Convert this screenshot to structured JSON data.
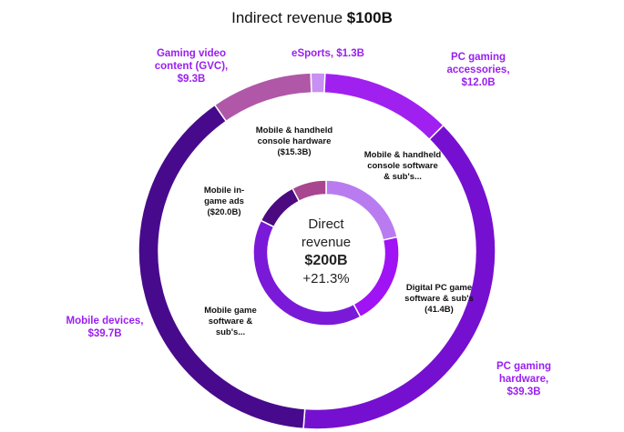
{
  "chart_data": {
    "type": "donut",
    "title_prefix": "Indirect revenue",
    "title_value": "$100B",
    "center": {
      "line1": "Direct",
      "line2": "revenue",
      "total": "$200B",
      "growth": "+21.3%"
    },
    "outer_ring": {
      "name": "Indirect revenue",
      "segments": [
        {
          "label": "eSports, $1.3B",
          "value": 1.3,
          "color": "#c890f2"
        },
        {
          "label": "PC gaming\naccessories,\n$12.0B",
          "value": 12.0,
          "color": "#a020f0"
        },
        {
          "label": "PC gaming\nhardware,\n$39.3B",
          "value": 39.3,
          "color": "#7610d0"
        },
        {
          "label": "Mobile devices,\n$39.7B",
          "value": 39.7,
          "color": "#480a8c"
        },
        {
          "label": "Gaming video\ncontent (GVC),\n$9.3B",
          "value": 9.3,
          "color": "#b057a8"
        }
      ]
    },
    "inner_ring": {
      "name": "Direct revenue",
      "segments": [
        {
          "label": "Mobile & handheld\nconsole software\n& sub's...",
          "value": 43,
          "color": "#b97cf0"
        },
        {
          "label": "Digital PC game\nsoftware & sub's\n(41.4B)",
          "value": 41.4,
          "color": "#a013f5"
        },
        {
          "label": "Mobile game\nsoftware &\nsub's...",
          "value": 80.3,
          "color": "#7a1ad8"
        },
        {
          "label": "Mobile in-\ngame ads\n($20.0B)",
          "value": 20.0,
          "color": "#4b0a80"
        },
        {
          "label": "Mobile & handheld\nconsole hardware\n($15.3B)",
          "value": 15.3,
          "color": "#a8468f"
        }
      ]
    }
  }
}
